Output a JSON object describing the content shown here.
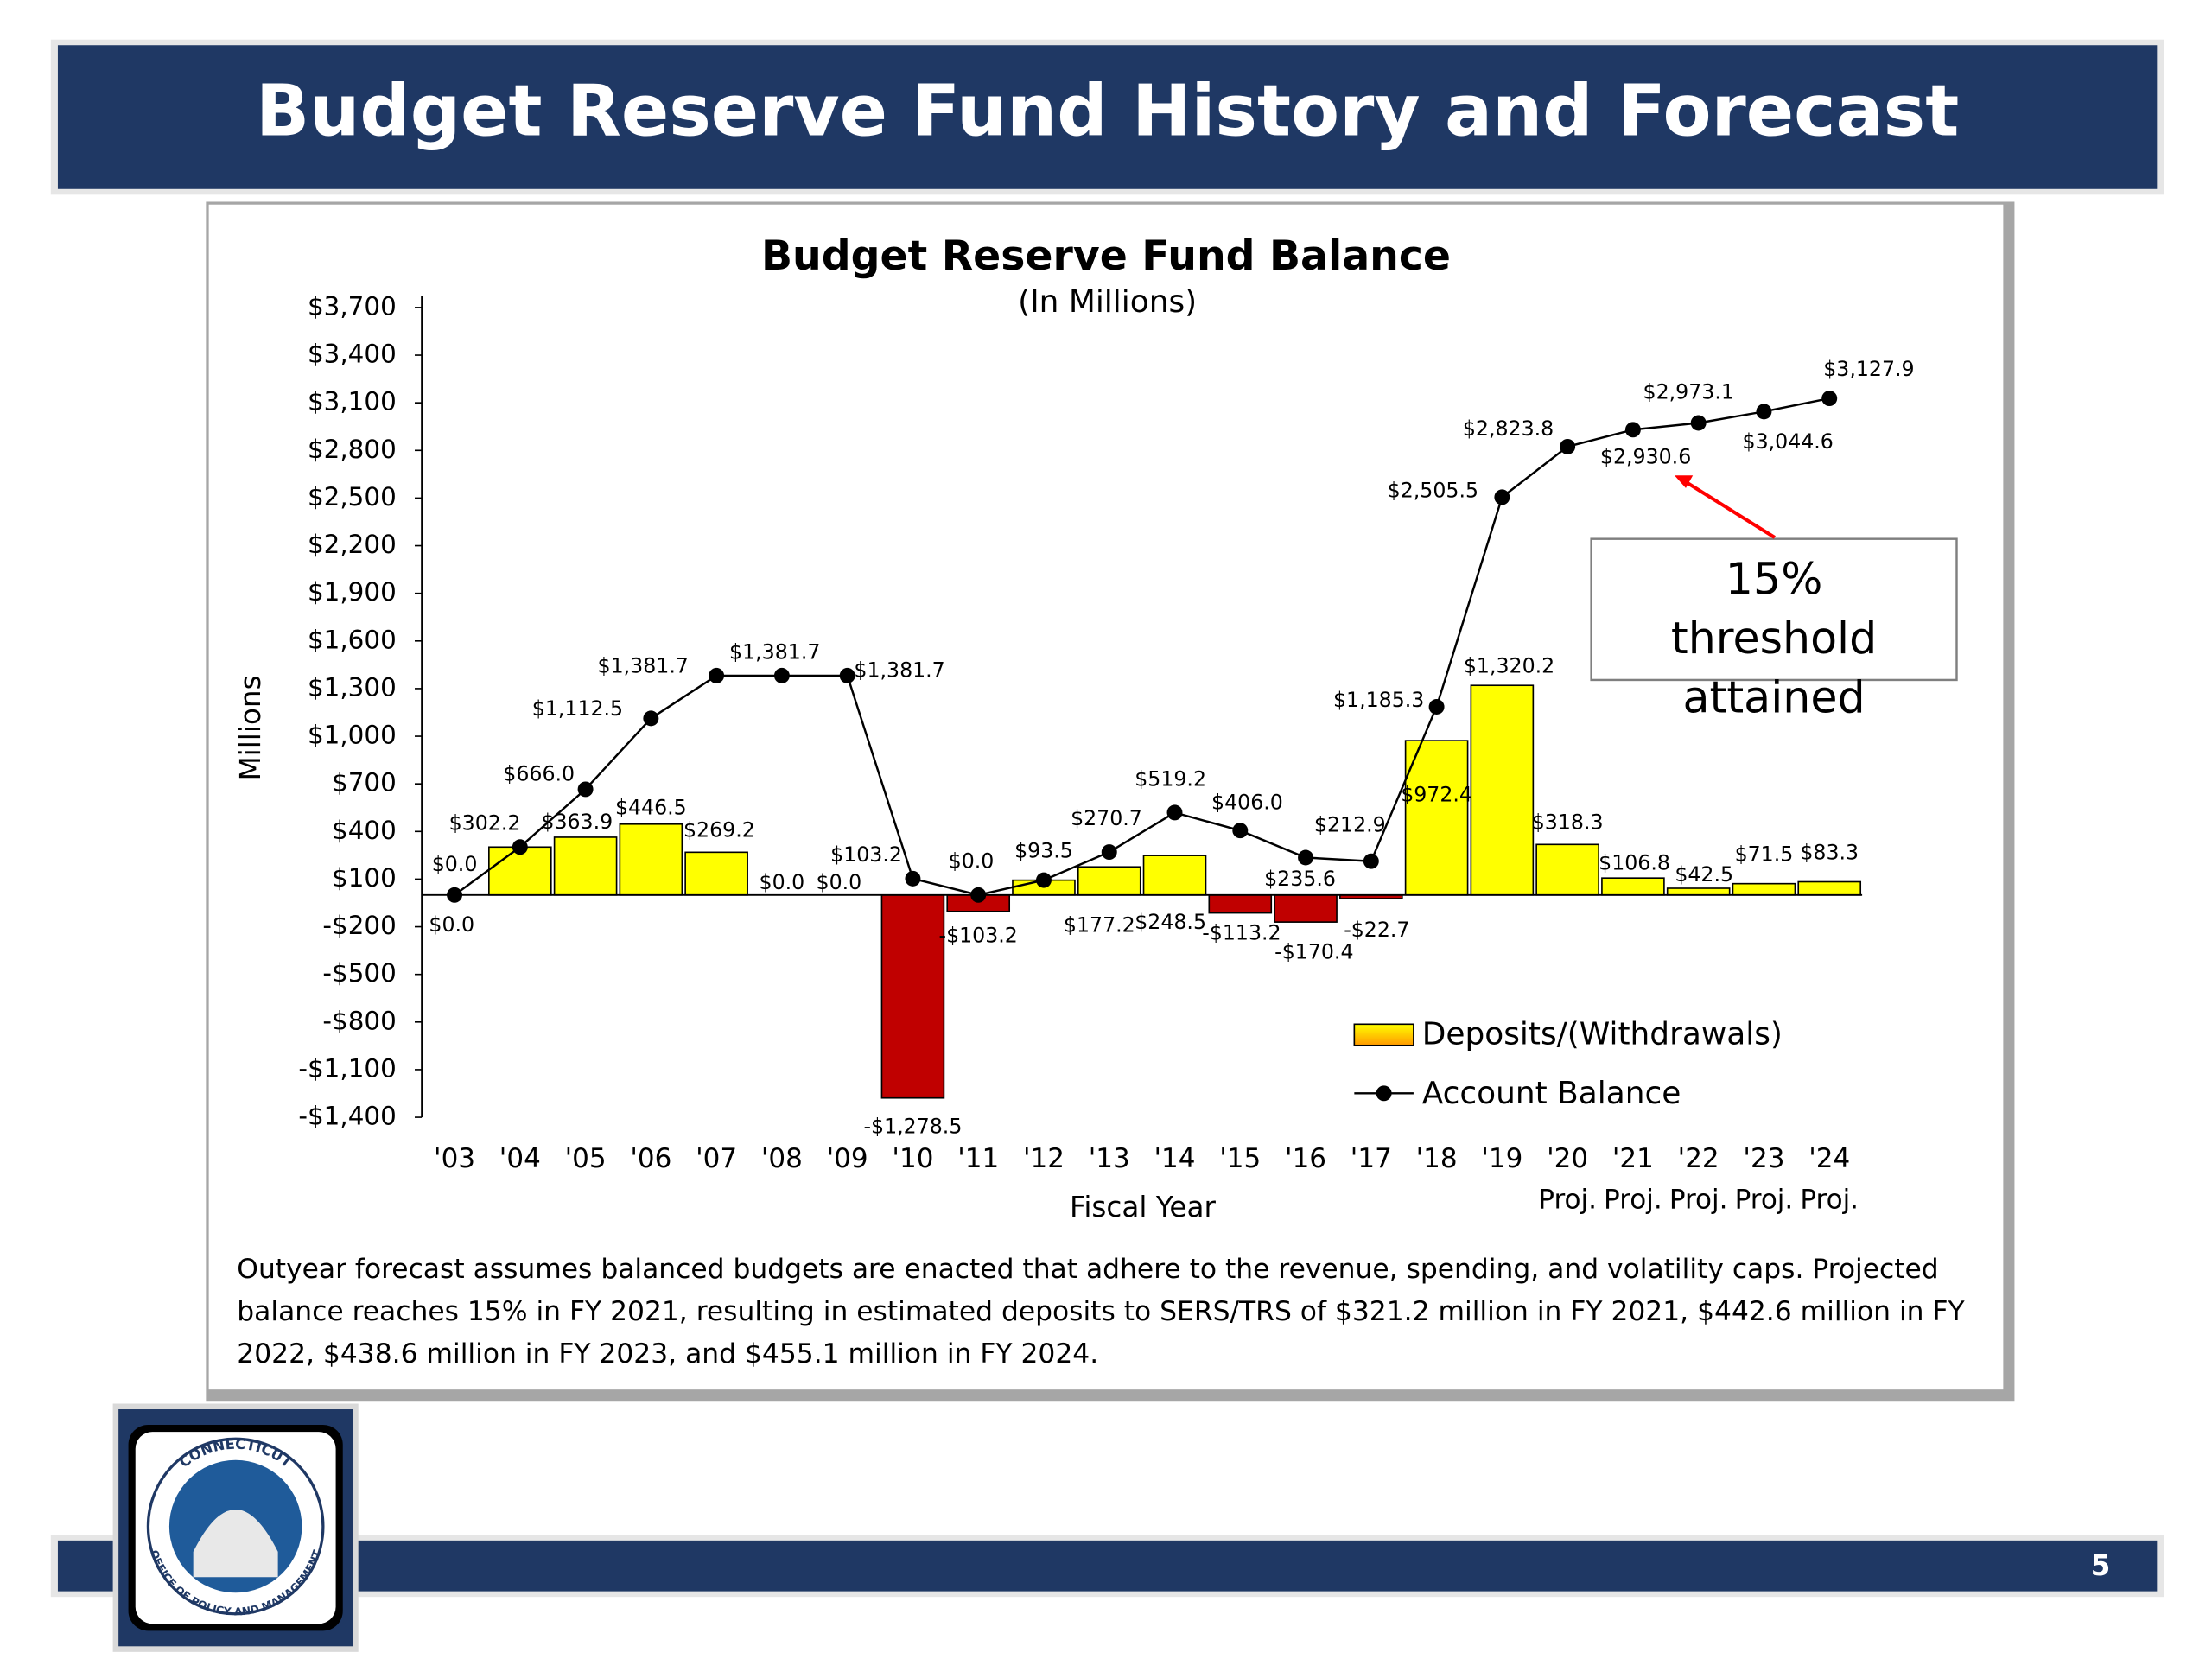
{
  "slide_title": "Budget Reserve Fund History and Forecast",
  "chart_data": {
    "type": "combo",
    "title": "Budget Reserve Fund Balance",
    "subtitle": "(In Millions)",
    "y_label": "Millions",
    "x_label": "Fiscal Year",
    "categories": [
      "'03",
      "'04",
      "'05",
      "'06",
      "'07",
      "'08",
      "'09",
      "'10",
      "'11",
      "'12",
      "'13",
      "'14",
      "'15",
      "'16",
      "'17",
      "'18",
      "'19",
      "'20",
      "'21",
      "'22",
      "'23",
      "'24"
    ],
    "category_notes": [
      null,
      null,
      null,
      null,
      null,
      null,
      null,
      null,
      null,
      null,
      null,
      null,
      null,
      null,
      null,
      null,
      null,
      "Proj.",
      "Proj.",
      "Proj.",
      "Proj.",
      "Proj."
    ],
    "series": [
      {
        "name": "Deposits/(Withdrawals)",
        "type": "bar",
        "color": "#ffff00",
        "negative_color": "#c00000",
        "values": [
          0.0,
          302.2,
          363.9,
          446.5,
          269.2,
          0.0,
          0.0,
          -1278.5,
          -103.2,
          93.5,
          177.2,
          248.5,
          -113.2,
          -170.4,
          -22.7,
          972.4,
          1320.2,
          318.3,
          106.8,
          42.5,
          71.5,
          83.3
        ],
        "value_labels": [
          "$0.0",
          null,
          "$363.9",
          "$446.5",
          "$269.2",
          "$0.0",
          "$0.0",
          "-$1,278.5",
          "-$103.2",
          null,
          "$177.2",
          "$248.5",
          "-$113.2",
          "-$170.4",
          "-$22.7",
          "$972.4",
          "$1,320.2",
          "$318.3",
          "$106.8",
          "$42.5",
          "$71.5",
          "$83.3"
        ]
      },
      {
        "name": "Account Balance",
        "type": "line",
        "color": "#000000",
        "values": [
          0.0,
          302.2,
          666.0,
          1112.5,
          1381.7,
          1381.7,
          1381.7,
          103.2,
          0.0,
          93.5,
          270.7,
          519.2,
          406.0,
          235.6,
          212.9,
          1185.3,
          2505.5,
          2823.8,
          2930.6,
          2973.1,
          3044.6,
          3127.9
        ],
        "value_labels": [
          "$0.0",
          "$302.2",
          "$666.0",
          "$1,112.5",
          "$1,381.7",
          "$1,381.7",
          "$1,381.7",
          "$103.2",
          "$0.0",
          "$93.5",
          "$270.7",
          "$519.2",
          "$406.0",
          "$235.6",
          "$212.9",
          "$1,185.3",
          "$2,505.5",
          "$2,823.8",
          "$2,930.6",
          "$2,973.1",
          "$3,044.6",
          "$3,127.9"
        ]
      }
    ],
    "ylim": [
      -1400,
      3700
    ],
    "yticks": [
      {
        "value": -1400,
        "label": "-$1,400"
      },
      {
        "value": -1100,
        "label": "-$1,100"
      },
      {
        "value": -800,
        "label": "-$800"
      },
      {
        "value": -500,
        "label": "-$500"
      },
      {
        "value": -200,
        "label": "-$200"
      },
      {
        "value": 100,
        "label": "$100"
      },
      {
        "value": 400,
        "label": "$400"
      },
      {
        "value": 700,
        "label": "$700"
      },
      {
        "value": 1000,
        "label": "$1,000"
      },
      {
        "value": 1300,
        "label": "$1,300"
      },
      {
        "value": 1600,
        "label": "$1,600"
      },
      {
        "value": 1900,
        "label": "$1,900"
      },
      {
        "value": 2200,
        "label": "$2,200"
      },
      {
        "value": 2500,
        "label": "$2,500"
      },
      {
        "value": 2800,
        "label": "$2,800"
      },
      {
        "value": 3100,
        "label": "$3,100"
      },
      {
        "value": 3400,
        "label": "$3,400"
      },
      {
        "value": 3700,
        "label": "$3,700"
      }
    ],
    "grid": false,
    "annotation": "15% threshold attained"
  },
  "footnote": "Outyear forecast assumes balanced budgets are enacted that adhere to the revenue, spending, and volatility caps. Projected balance reaches 15% in FY 2021, resulting in estimated deposits to SERS/TRS of $321.2 million in FY 2021, $442.6 million in FY 2022, $438.6 million in FY 2023, and $455.1 million in FY 2024.",
  "logo": {
    "top": "CONNECTICUT",
    "bottom": "OFFICE OF POLICY AND MANAGEMENT"
  },
  "page_number": 5
}
